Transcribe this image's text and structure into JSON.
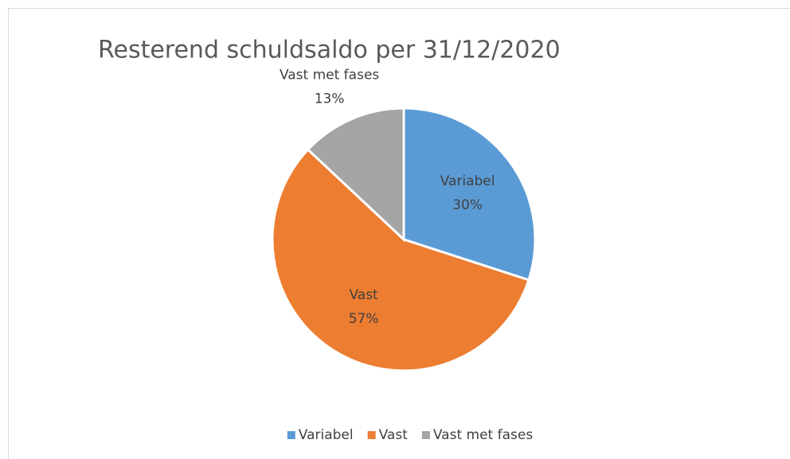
{
  "chart_data": {
    "type": "pie",
    "title": "Resterend schuldsaldo per 31/12/2020",
    "categories": [
      "Variabel",
      "Vast",
      "Vast met fases"
    ],
    "values": [
      30,
      57,
      13
    ],
    "value_labels": [
      "30%",
      "57%",
      "13%"
    ],
    "colors": [
      "#5b9bd5",
      "#ed7d31",
      "#a5a5a5"
    ],
    "legend": "bottom"
  }
}
